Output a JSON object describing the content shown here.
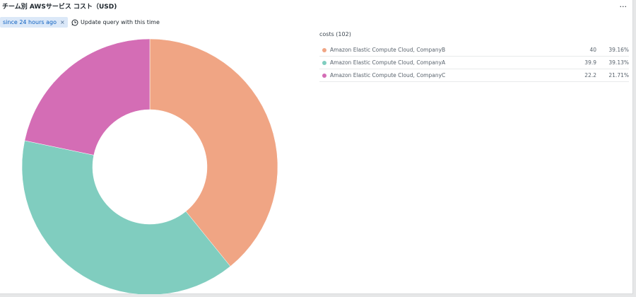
{
  "panel": {
    "title": "チーム別 AWSサービス コスト（USD)",
    "menu_glyph": "..."
  },
  "filter": {
    "chip_label": "since 24 hours ago",
    "chip_close_glyph": "×",
    "update_query_label": "Update query with this time"
  },
  "icons": {
    "clock": "clock-icon",
    "close": "close-icon",
    "more": "more-horizontal-icon"
  },
  "legend": {
    "header": "costs (102)"
  },
  "colors": {
    "CompanyB": "#f0a584",
    "CompanyA": "#80cdbf",
    "CompanyC": "#d46db5",
    "chip_bg": "#dbe8f8",
    "chip_text": "#0b5fc0"
  },
  "chart_data": {
    "type": "pie",
    "style": "donut",
    "total_label": "costs (102)",
    "slices": [
      {
        "label": "Amazon Elastic Compute Cloud, CompanyB",
        "value": "40",
        "percent_label": "39.16%",
        "percent": 39.16,
        "color": "#f0a584"
      },
      {
        "label": "Amazon Elastic Compute Cloud, CompanyA",
        "value": "39.9",
        "percent_label": "39.13%",
        "percent": 39.13,
        "color": "#80cdbf"
      },
      {
        "label": "Amazon Elastic Compute Cloud, CompanyC",
        "value": "22.2",
        "percent_label": "21.71%",
        "percent": 21.71,
        "color": "#d46db5"
      }
    ],
    "legend_position": "right"
  }
}
